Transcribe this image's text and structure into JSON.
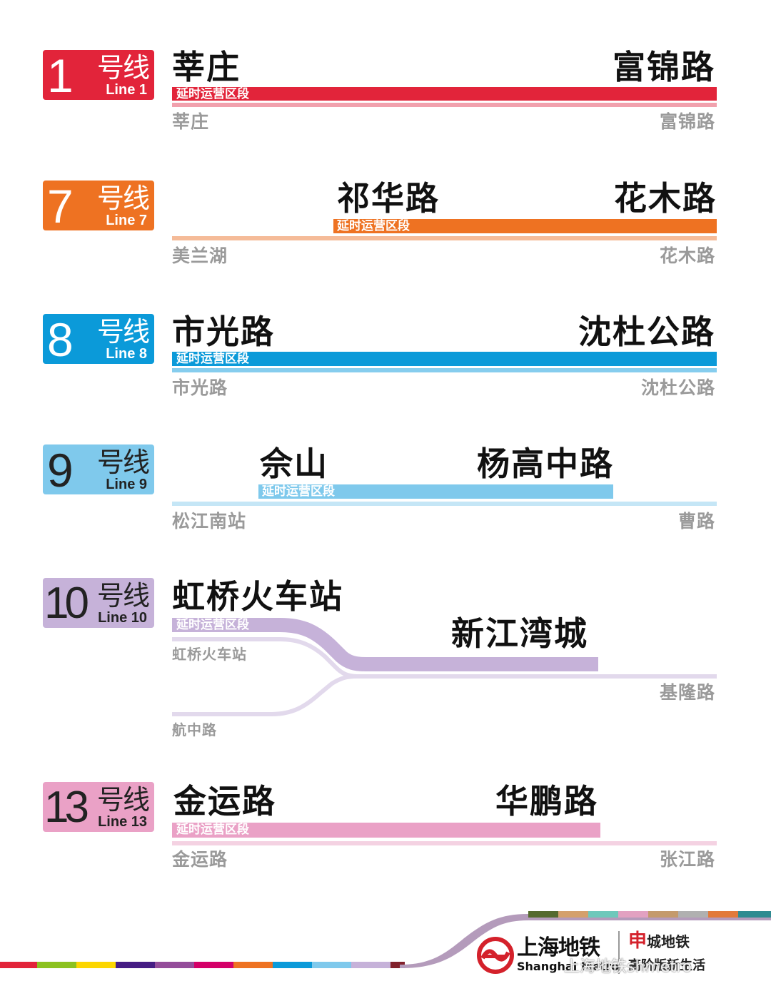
{
  "delay_label": "延时运营区段",
  "lines": [
    {
      "num": "1",
      "hx": "号线",
      "en": "Line 1",
      "color": "#e2243a",
      "light": "#f1a1ad",
      "start": "莘庄",
      "end": "富锦路",
      "sub_start": "莘庄",
      "sub_end": "富锦路"
    },
    {
      "num": "7",
      "hx": "号线",
      "en": "Line 7",
      "color": "#ee7222",
      "light": "#f5bb98",
      "start": "祁华路",
      "end": "花木路",
      "sub_start": "美兰湖",
      "sub_end": "花木路"
    },
    {
      "num": "8",
      "hx": "号线",
      "en": "Line 8",
      "color": "#0b9ad9",
      "light": "#86cdee",
      "start": "市光路",
      "end": "沈杜公路",
      "sub_start": "市光路",
      "sub_end": "沈杜公路"
    },
    {
      "num": "9",
      "hx": "号线",
      "en": "Line 9",
      "color": "#7fc9ec",
      "light": "#c5e6f6",
      "start": "佘山",
      "end": "杨高中路",
      "sub_start": "松江南站",
      "sub_end": "曹路"
    },
    {
      "num": "10",
      "hx": "号线",
      "en": "Line 10",
      "color": "#c6b2d9",
      "light": "#e2d9ec",
      "start": "虹桥火车站",
      "end": "新江湾城",
      "sub_start": "虹桥火车站",
      "sub_branch": "航中路",
      "sub_end": "基隆路"
    },
    {
      "num": "13",
      "hx": "号线",
      "en": "Line 13",
      "color": "#eaa1c6",
      "light": "#f4d2e2",
      "start": "金运路",
      "end": "华鹏路",
      "sub_start": "金运路",
      "sub_end": "张江路"
    }
  ],
  "footer": {
    "brand": "上海地铁",
    "brand_en": "Shanghai Metro",
    "city_a": "申",
    "city_b": "城地铁",
    "sub": "高阶版新生活",
    "watermark": "上海地铁shmetro"
  },
  "colors": {
    "l1": "#e2243a",
    "l7": "#ee7222",
    "l8": "#0b9ad9",
    "l9": "#7fc9ec",
    "l10": "#c6b2d9",
    "l13": "#eaa1c6"
  }
}
